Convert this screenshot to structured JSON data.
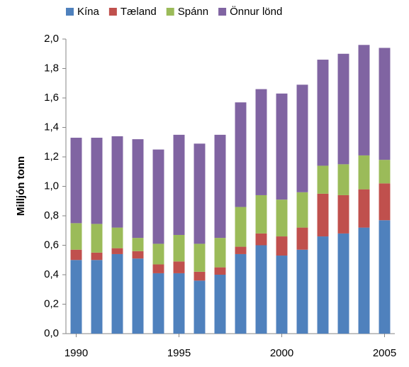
{
  "chart_data": {
    "type": "stacked_bar",
    "y_label": "Milljón tonn",
    "x": [
      1990,
      1991,
      1992,
      1993,
      1994,
      1995,
      1996,
      1997,
      1998,
      1999,
      2000,
      2001,
      2002,
      2003,
      2004,
      2005
    ],
    "xlim": [
      1989.5,
      2005.5
    ],
    "xticks": [
      1990,
      1995,
      2000,
      2005
    ],
    "ylim": [
      0,
      2
    ],
    "yticks": [
      {
        "value": 0,
        "label": "0,0"
      },
      {
        "value": 0.2,
        "label": "0,2"
      },
      {
        "value": 0.4,
        "label": "0,4"
      },
      {
        "value": 0.6,
        "label": "0,6"
      },
      {
        "value": 0.8,
        "label": "0,8"
      },
      {
        "value": 1.0,
        "label": "1,0"
      },
      {
        "value": 1.2,
        "label": "1,2"
      },
      {
        "value": 1.4,
        "label": "1,4"
      },
      {
        "value": 1.6,
        "label": "1,6"
      },
      {
        "value": 1.8,
        "label": "1,8"
      },
      {
        "value": 2.0,
        "label": "2,0"
      }
    ],
    "grid": false,
    "legend": "top",
    "series": [
      {
        "name": "Kína",
        "color": "#4f81bd",
        "values": [
          0.5,
          0.5,
          0.54,
          0.51,
          0.41,
          0.41,
          0.36,
          0.4,
          0.54,
          0.6,
          0.53,
          0.57,
          0.66,
          0.68,
          0.72,
          0.77
        ]
      },
      {
        "name": "Tæland",
        "color": "#c0504d",
        "values": [
          0.07,
          0.05,
          0.04,
          0.05,
          0.06,
          0.08,
          0.06,
          0.05,
          0.05,
          0.08,
          0.13,
          0.15,
          0.29,
          0.26,
          0.26,
          0.25
        ]
      },
      {
        "name": "Spánn",
        "color": "#9bbb59",
        "values": [
          0.18,
          0.195,
          0.14,
          0.09,
          0.14,
          0.18,
          0.19,
          0.2,
          0.27,
          0.26,
          0.25,
          0.24,
          0.19,
          0.21,
          0.23,
          0.16
        ]
      },
      {
        "name": "Önnur lönd",
        "color": "#8064a2",
        "values": [
          0.58,
          0.585,
          0.62,
          0.67,
          0.64,
          0.68,
          0.68,
          0.7,
          0.71,
          0.72,
          0.72,
          0.73,
          0.72,
          0.75,
          0.75,
          0.76
        ]
      }
    ]
  }
}
